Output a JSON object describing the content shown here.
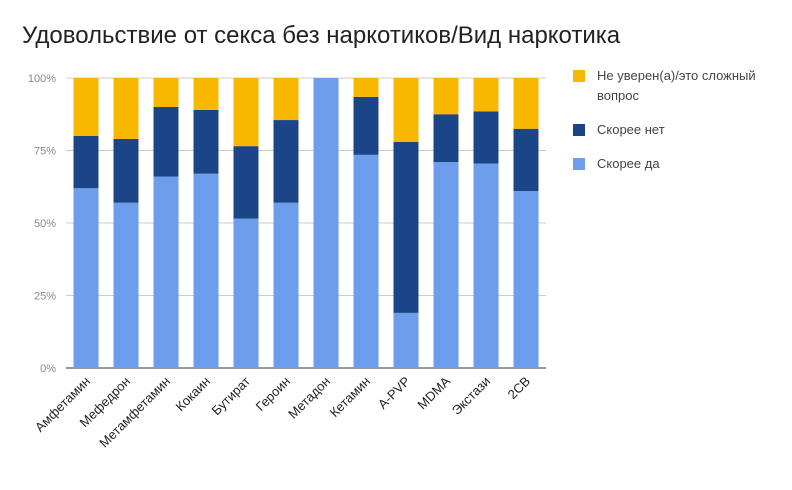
{
  "chart_data": {
    "type": "bar",
    "stacked": true,
    "title": "Удовольствие от секса без наркотиков/Вид наркотика",
    "categories": [
      "Амфетамин",
      "Мефедрон",
      "Метамфетамин",
      "Кокаин",
      "Бутират",
      "Героин",
      "Метадон",
      "Кетамин",
      "A-PVP",
      "MDMA",
      "Экстази",
      "2CB"
    ],
    "series": [
      {
        "name": "Скорее да",
        "color": "#6d9eeb",
        "values": [
          62,
          57,
          66,
          67,
          51.5,
          57,
          100,
          73.5,
          19,
          71,
          70.5,
          61
        ]
      },
      {
        "name": "Скорее нет",
        "color": "#1c4587",
        "values": [
          18,
          22,
          24,
          22,
          25,
          28.5,
          0,
          20,
          59,
          16.5,
          18,
          21.5
        ]
      },
      {
        "name": "Не уверен(а)/это сложный вопрос",
        "color": "#f9b800",
        "values": [
          20,
          21,
          10,
          11,
          23.5,
          14.5,
          0,
          6.5,
          22,
          12.5,
          11.5,
          17.5
        ]
      }
    ],
    "legend_order": [
      2,
      1,
      0
    ],
    "legend_position": "right",
    "yticks": [
      "0%",
      "25%",
      "50%",
      "75%",
      "100%"
    ],
    "ylim": [
      0,
      100
    ],
    "xlabel": "",
    "ylabel": ""
  }
}
